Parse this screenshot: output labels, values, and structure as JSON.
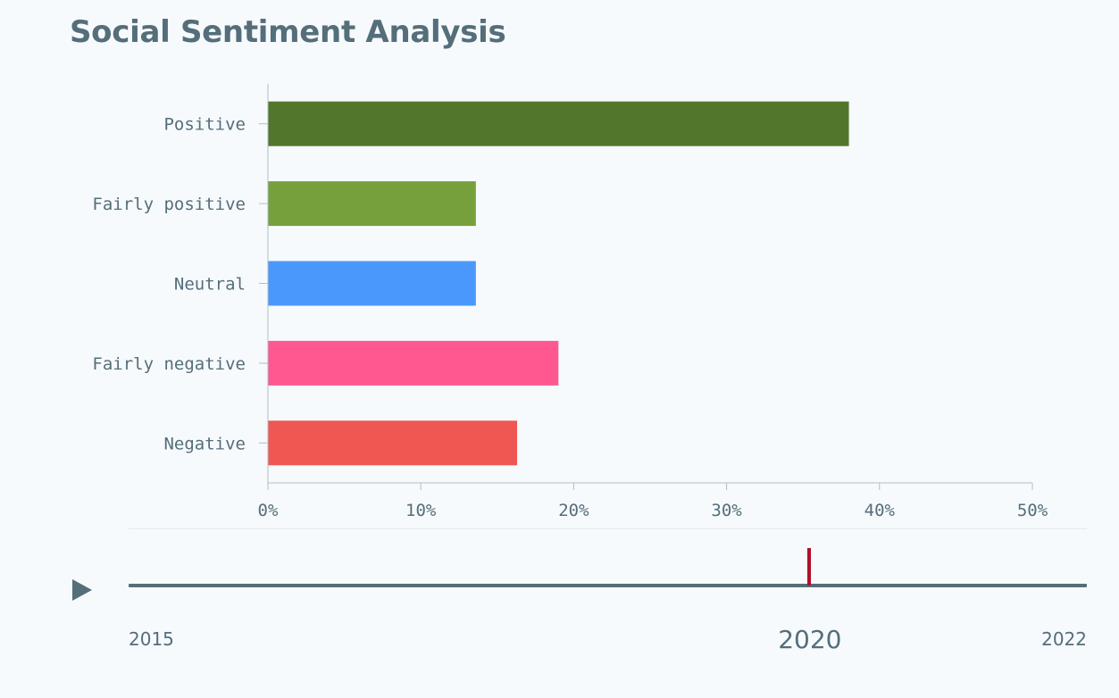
{
  "chart_data": {
    "type": "bar",
    "orientation": "horizontal",
    "title": "Social Sentiment Analysis",
    "categories": [
      "Positive",
      "Fairly positive",
      "Neutral",
      "Fairly negative",
      "Negative"
    ],
    "values": [
      38,
      13.6,
      13.6,
      19,
      16.3
    ],
    "colors": [
      "#52772c",
      "#76a03c",
      "#4b98fc",
      "#ff5890",
      "#ef5753"
    ],
    "xlim": [
      0,
      50
    ],
    "xticks": [
      0,
      10,
      20,
      30,
      40,
      50
    ],
    "xtick_labels": [
      "0%",
      "10%",
      "20%",
      "30%",
      "40%",
      "50%"
    ],
    "xlabel": "",
    "ylabel": "",
    "grid": false,
    "legend": "none"
  },
  "timeline": {
    "start_year": "2015",
    "end_year": "2022",
    "current_year": "2020",
    "current_position": 0.71,
    "play_icon": "play-icon",
    "thumb_color": "#b0102a"
  }
}
